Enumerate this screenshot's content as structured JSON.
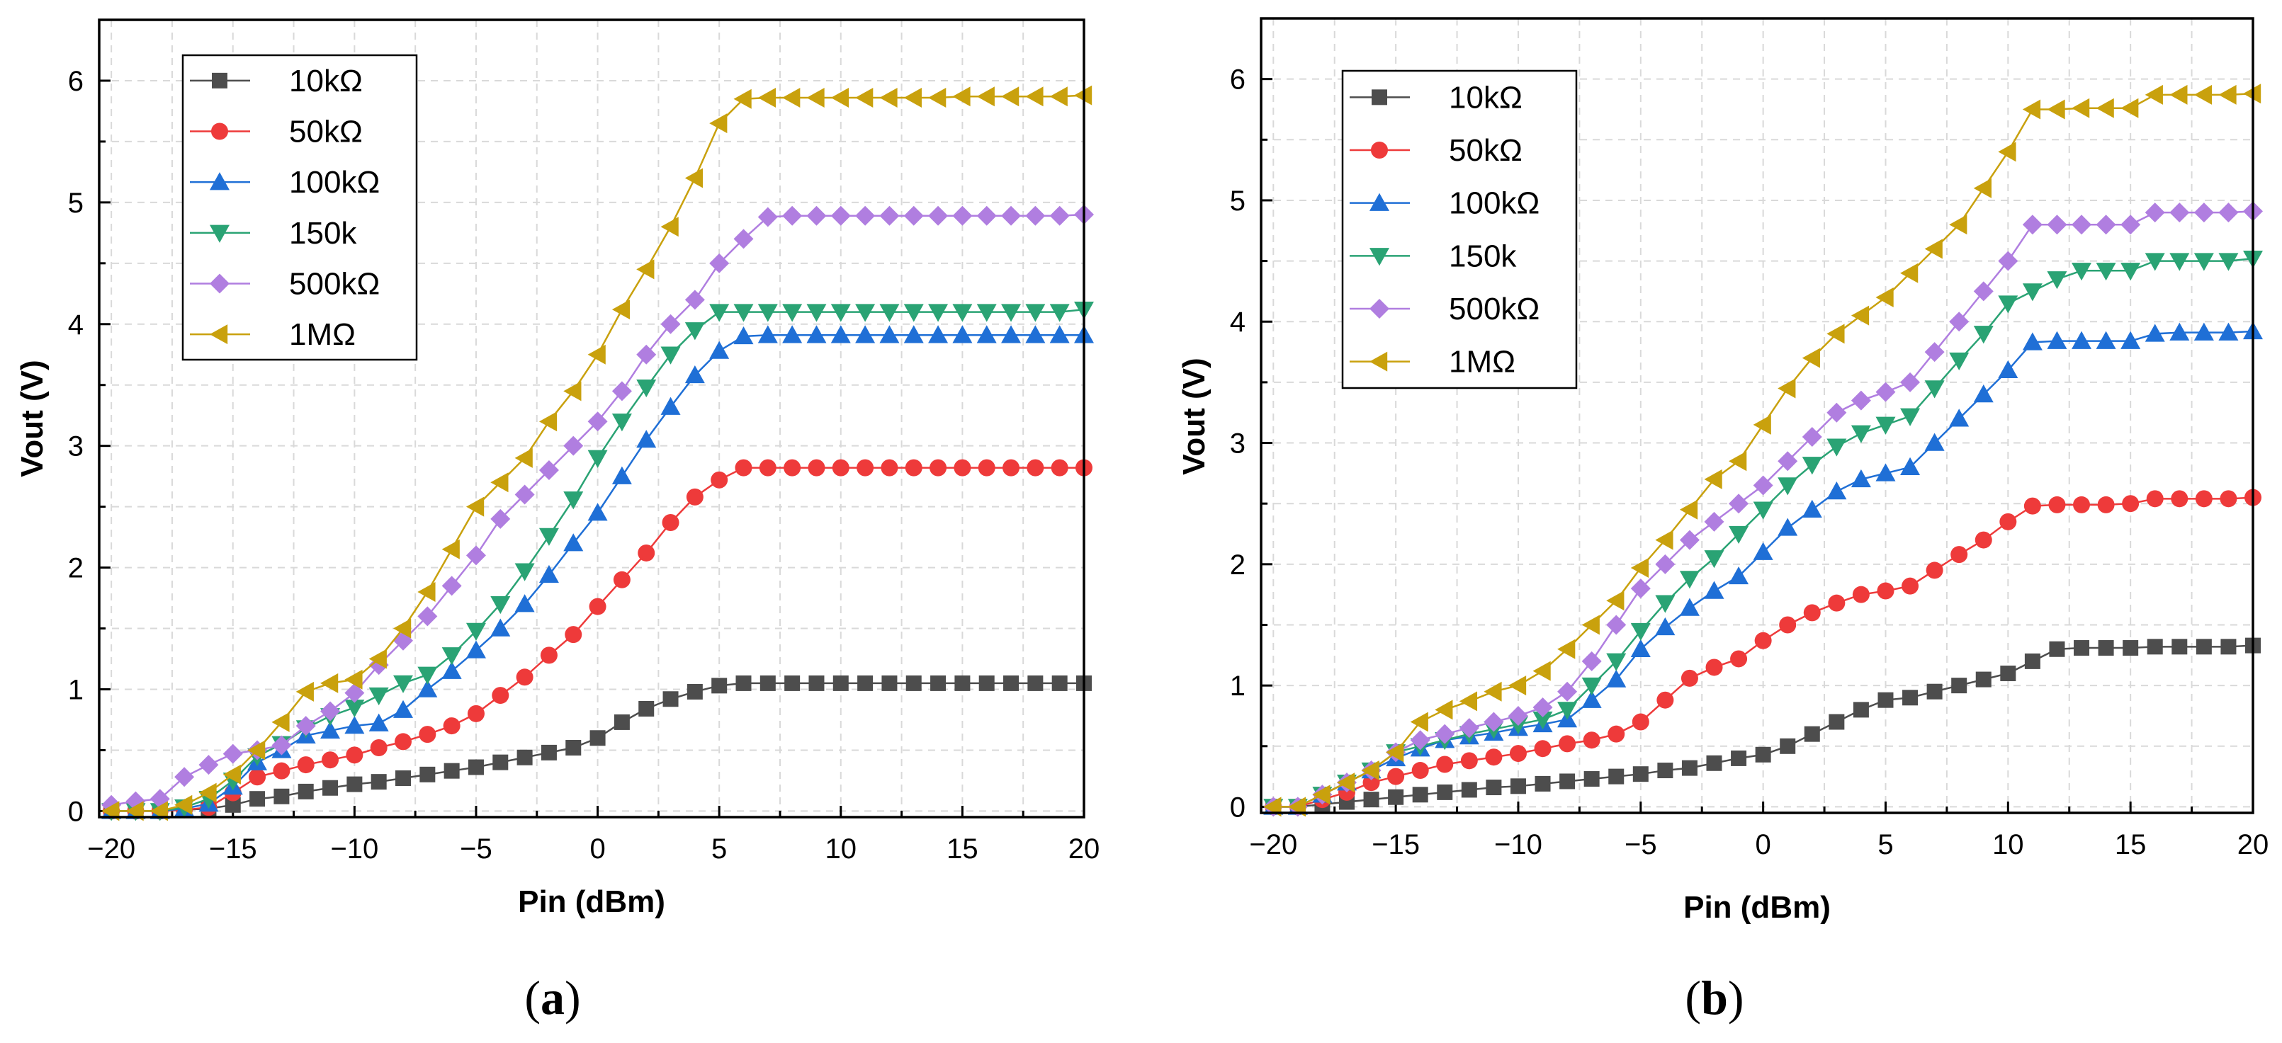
{
  "chart_data": [
    {
      "type": "line",
      "panel_label": "(a)",
      "panel_letter": "a",
      "xlabel": "Pin (dBm)",
      "ylabel": "Vout (V)",
      "xlim": [
        -20.5,
        20
      ],
      "ylim": [
        -0.05,
        6.5
      ],
      "xticks": [
        -20,
        -15,
        -10,
        -5,
        0,
        5,
        10,
        15,
        20
      ],
      "yticks": [
        0,
        1,
        2,
        3,
        4,
        5,
        6
      ],
      "xtick_labels": [
        "−20",
        "−15",
        "−10",
        "−5",
        "0",
        "5",
        "10",
        "15",
        "20"
      ],
      "ytick_labels": [
        "0",
        "1",
        "2",
        "3",
        "4",
        "5",
        "6"
      ],
      "grid": true,
      "legend_position": "top-left",
      "x": [
        -20,
        -19,
        -18,
        -17,
        -16,
        -15,
        -14,
        -13,
        -12,
        -11,
        -10,
        -9,
        -8,
        -7,
        -6,
        -5,
        -4,
        -3,
        -2,
        -1,
        0,
        1,
        2,
        3,
        4,
        5,
        6,
        7,
        8,
        9,
        10,
        11,
        12,
        13,
        14,
        15,
        16,
        17,
        18,
        19,
        20
      ],
      "series": [
        {
          "name": "10kΩ",
          "color": "#4d4d4d",
          "marker": "square",
          "values": [
            0,
            0,
            0,
            0.01,
            0.02,
            0.05,
            0.1,
            0.12,
            0.16,
            0.19,
            0.22,
            0.24,
            0.27,
            0.3,
            0.33,
            0.36,
            0.4,
            0.44,
            0.48,
            0.52,
            0.6,
            0.73,
            0.84,
            0.92,
            0.98,
            1.03,
            1.05,
            1.05,
            1.05,
            1.05,
            1.05,
            1.05,
            1.05,
            1.05,
            1.05,
            1.05,
            1.05,
            1.05,
            1.05,
            1.05,
            1.05
          ]
        },
        {
          "name": "50kΩ",
          "color": "#ee3a3a",
          "marker": "circle",
          "values": [
            0,
            0,
            0,
            0.01,
            0.03,
            0.15,
            0.28,
            0.33,
            0.38,
            0.42,
            0.46,
            0.52,
            0.57,
            0.63,
            0.7,
            0.8,
            0.95,
            1.1,
            1.28,
            1.45,
            1.68,
            1.9,
            2.12,
            2.37,
            2.58,
            2.72,
            2.82,
            2.82,
            2.82,
            2.82,
            2.82,
            2.82,
            2.82,
            2.82,
            2.82,
            2.82,
            2.82,
            2.82,
            2.82,
            2.82,
            2.82
          ]
        },
        {
          "name": "100kΩ",
          "color": "#1f6fd6",
          "marker": "triangle-up",
          "values": [
            0,
            0,
            0,
            0.02,
            0.06,
            0.2,
            0.4,
            0.5,
            0.62,
            0.66,
            0.7,
            0.72,
            0.83,
            1.0,
            1.15,
            1.32,
            1.5,
            1.7,
            1.94,
            2.2,
            2.45,
            2.75,
            3.05,
            3.32,
            3.58,
            3.78,
            3.9,
            3.91,
            3.91,
            3.91,
            3.91,
            3.91,
            3.91,
            3.91,
            3.91,
            3.91,
            3.91,
            3.91,
            3.91,
            3.91,
            3.91
          ]
        },
        {
          "name": "150k",
          "color": "#2aa374",
          "marker": "triangle-down",
          "values": [
            0,
            0,
            0,
            0.03,
            0.1,
            0.25,
            0.45,
            0.55,
            0.68,
            0.78,
            0.85,
            0.95,
            1.05,
            1.12,
            1.28,
            1.48,
            1.7,
            1.97,
            2.26,
            2.56,
            2.9,
            3.2,
            3.48,
            3.75,
            3.95,
            4.1,
            4.1,
            4.1,
            4.1,
            4.1,
            4.1,
            4.1,
            4.1,
            4.1,
            4.1,
            4.1,
            4.1,
            4.1,
            4.1,
            4.1,
            4.12
          ]
        },
        {
          "name": "500kΩ",
          "color": "#b07ee0",
          "marker": "diamond",
          "values": [
            0.05,
            0.08,
            0.1,
            0.28,
            0.38,
            0.47,
            0.5,
            0.54,
            0.7,
            0.82,
            0.97,
            1.2,
            1.4,
            1.6,
            1.85,
            2.1,
            2.4,
            2.6,
            2.8,
            3.0,
            3.2,
            3.45,
            3.75,
            4.0,
            4.2,
            4.5,
            4.7,
            4.88,
            4.89,
            4.89,
            4.89,
            4.89,
            4.89,
            4.89,
            4.89,
            4.89,
            4.89,
            4.89,
            4.89,
            4.89,
            4.9
          ]
        },
        {
          "name": "1MΩ",
          "color": "#c9a10d",
          "marker": "triangle-left",
          "values": [
            0,
            0,
            0,
            0.05,
            0.15,
            0.3,
            0.5,
            0.73,
            0.98,
            1.05,
            1.08,
            1.25,
            1.5,
            1.8,
            2.15,
            2.5,
            2.7,
            2.9,
            3.2,
            3.45,
            3.75,
            4.12,
            4.45,
            4.8,
            5.2,
            5.65,
            5.85,
            5.86,
            5.86,
            5.86,
            5.86,
            5.86,
            5.86,
            5.86,
            5.86,
            5.87,
            5.87,
            5.87,
            5.87,
            5.87,
            5.88
          ]
        }
      ]
    },
    {
      "type": "line",
      "panel_label": "(b)",
      "panel_letter": "b",
      "xlabel": "Pin (dBm)",
      "ylabel": "Vout (V)",
      "xlim": [
        -20.5,
        20
      ],
      "ylim": [
        -0.05,
        6.5
      ],
      "xticks": [
        -20,
        -15,
        -10,
        -5,
        0,
        5,
        10,
        15,
        20
      ],
      "yticks": [
        0,
        1,
        2,
        3,
        4,
        5,
        6
      ],
      "xtick_labels": [
        "−20",
        "−15",
        "−10",
        "−5",
        "0",
        "5",
        "10",
        "15",
        "20"
      ],
      "ytick_labels": [
        "0",
        "1",
        "2",
        "3",
        "4",
        "5",
        "6"
      ],
      "grid": true,
      "legend_position": "top-left",
      "x": [
        -20,
        -19,
        -18,
        -17,
        -16,
        -15,
        -14,
        -13,
        -12,
        -11,
        -10,
        -9,
        -8,
        -7,
        -6,
        -5,
        -4,
        -3,
        -2,
        -1,
        0,
        1,
        2,
        3,
        4,
        5,
        6,
        7,
        8,
        9,
        10,
        11,
        12,
        13,
        14,
        15,
        16,
        17,
        18,
        19,
        20
      ],
      "series": [
        {
          "name": "10kΩ",
          "color": "#4d4d4d",
          "marker": "square",
          "values": [
            0,
            0,
            0.02,
            0.04,
            0.06,
            0.08,
            0.1,
            0.12,
            0.14,
            0.16,
            0.17,
            0.19,
            0.21,
            0.23,
            0.25,
            0.27,
            0.3,
            0.32,
            0.36,
            0.4,
            0.43,
            0.5,
            0.6,
            0.7,
            0.8,
            0.88,
            0.9,
            0.95,
            1.0,
            1.05,
            1.1,
            1.2,
            1.3,
            1.31,
            1.31,
            1.31,
            1.32,
            1.32,
            1.32,
            1.32,
            1.33
          ]
        },
        {
          "name": "50kΩ",
          "color": "#ee3a3a",
          "marker": "circle",
          "values": [
            0,
            0,
            0.06,
            0.12,
            0.2,
            0.25,
            0.3,
            0.35,
            0.38,
            0.41,
            0.44,
            0.48,
            0.52,
            0.55,
            0.6,
            0.7,
            0.88,
            1.06,
            1.15,
            1.22,
            1.37,
            1.5,
            1.6,
            1.68,
            1.75,
            1.78,
            1.82,
            1.95,
            2.08,
            2.2,
            2.35,
            2.48,
            2.49,
            2.49,
            2.49,
            2.5,
            2.54,
            2.54,
            2.54,
            2.54,
            2.55
          ]
        },
        {
          "name": "100kΩ",
          "color": "#1f6fd6",
          "marker": "triangle-up",
          "values": [
            0,
            0,
            0.1,
            0.2,
            0.3,
            0.4,
            0.48,
            0.55,
            0.58,
            0.61,
            0.65,
            0.68,
            0.72,
            0.88,
            1.05,
            1.3,
            1.48,
            1.64,
            1.78,
            1.9,
            2.1,
            2.3,
            2.45,
            2.6,
            2.7,
            2.75,
            2.8,
            3.0,
            3.2,
            3.4,
            3.6,
            3.83,
            3.84,
            3.84,
            3.84,
            3.84,
            3.9,
            3.91,
            3.91,
            3.91,
            3.92
          ]
        },
        {
          "name": "150k",
          "color": "#2aa374",
          "marker": "triangle-down",
          "values": [
            0,
            0,
            0.1,
            0.2,
            0.3,
            0.45,
            0.5,
            0.55,
            0.6,
            0.64,
            0.68,
            0.72,
            0.8,
            1.0,
            1.2,
            1.45,
            1.68,
            1.88,
            2.05,
            2.25,
            2.45,
            2.65,
            2.82,
            2.97,
            3.08,
            3.15,
            3.22,
            3.45,
            3.68,
            3.9,
            4.15,
            4.25,
            4.35,
            4.42,
            4.42,
            4.42,
            4.5,
            4.5,
            4.5,
            4.5,
            4.52
          ]
        },
        {
          "name": "500kΩ",
          "color": "#b07ee0",
          "marker": "diamond",
          "values": [
            0,
            0,
            0.1,
            0.2,
            0.3,
            0.45,
            0.55,
            0.6,
            0.65,
            0.7,
            0.75,
            0.82,
            0.95,
            1.2,
            1.5,
            1.8,
            2.0,
            2.2,
            2.35,
            2.5,
            2.65,
            2.85,
            3.05,
            3.25,
            3.35,
            3.42,
            3.5,
            3.75,
            4.0,
            4.25,
            4.5,
            4.8,
            4.8,
            4.8,
            4.8,
            4.8,
            4.9,
            4.9,
            4.9,
            4.9,
            4.91
          ]
        },
        {
          "name": "1MΩ",
          "color": "#c9a10d",
          "marker": "triangle-left",
          "values": [
            0,
            0,
            0.1,
            0.2,
            0.3,
            0.45,
            0.7,
            0.8,
            0.87,
            0.95,
            1.0,
            1.12,
            1.3,
            1.5,
            1.7,
            1.97,
            2.2,
            2.45,
            2.7,
            2.85,
            3.15,
            3.45,
            3.7,
            3.9,
            4.05,
            4.2,
            4.4,
            4.6,
            4.8,
            5.1,
            5.4,
            5.75,
            5.75,
            5.76,
            5.76,
            5.76,
            5.87,
            5.87,
            5.87,
            5.87,
            5.88
          ]
        }
      ]
    }
  ]
}
